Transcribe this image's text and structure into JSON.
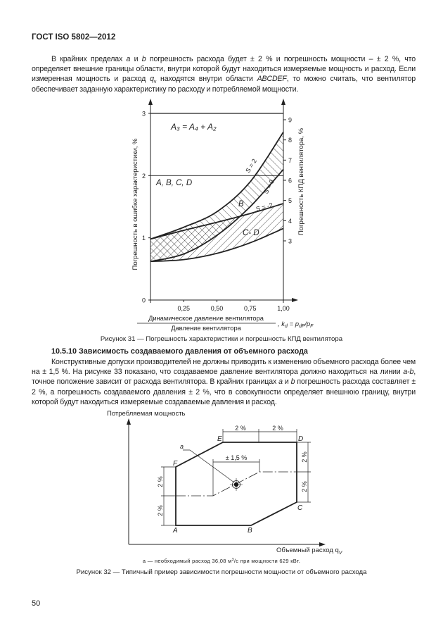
{
  "header": {
    "doc_id": "ГОСТ ISO 5802—2012"
  },
  "intro": {
    "p1_a": "В крайних пределах ",
    "p1_a_var": "a",
    "p1_b": " и ",
    "p1_b_var": "b",
    "p1_c": " погрешность расхода будет ± 2 % и погрешность мощности – ± 2 %, что определяет внешние границы области, внутри которой будут находиться измеряемые мощность и расход. Если измеренная мощность и расход ",
    "p1_q": "q",
    "p1_q_sub": "v",
    "p1_d": " находятся внутри области ",
    "p1_region": "ABCDEF",
    "p1_e": ", то можно считать, что вентилятор обеспечивает заданную характеристику по расходу и потребляемой мощности."
  },
  "figure31": {
    "caption": "Рисунок 31 — Погрешность характеристики и погрешность КПД вентилятора",
    "formula_top": "A₃ = A₄ + A₂",
    "label_abcd": "A, B, C, D",
    "label_b": "B",
    "label_cd": "C- D",
    "curve_labels": {
      "s_pos2": "S = 2",
      "s_0": "S = 0",
      "s_neg2": "S = -2"
    },
    "xlabel_num": "Динамическое давление вентилятора",
    "xlabel_den": "Давление вентилятора",
    "xlabel_tail": ", k",
    "xlabel_tail_sub": "d",
    "xlabel_eq": " = p",
    "xlabel_eq_sub": "dF",
    "xlabel_slash": "/p",
    "xlabel_slash_sub": "F"
  },
  "chart_data": {
    "type": "line",
    "xlabel": "Динамическое давление вентилятора / Давление вентилятора, k_d = p_dF/p_F",
    "ylabel": "Погрешность в ошибке характеристики, %",
    "y2label": "Погрешность КПД вентилятора, %",
    "xlim": [
      0,
      1.0
    ],
    "ylim": [
      0,
      3
    ],
    "y2lim": [
      3,
      9
    ],
    "x_ticks": [
      "0,25",
      "0,50",
      "0,75",
      "1,00"
    ],
    "y_ticks": [
      "0",
      "1",
      "2",
      "3"
    ],
    "y2_ticks": [
      "3",
      "4",
      "5",
      "6",
      "7",
      "8",
      "9"
    ],
    "x": [
      0,
      0.25,
      0.5,
      0.75,
      1.0
    ],
    "series": [
      {
        "name": "S = 2",
        "values": [
          0.98,
          1.17,
          1.42,
          1.9,
          2.7
        ]
      },
      {
        "name": "S = 0",
        "values": [
          0.62,
          0.74,
          1.04,
          1.5,
          2.1
        ]
      },
      {
        "name": "S = -2",
        "values": [
          0.98,
          1.12,
          1.25,
          1.39,
          1.55
        ]
      },
      {
        "values": [
          0.62,
          0.65,
          0.75,
          0.92,
          1.15
        ]
      }
    ],
    "reference_lines": [
      {
        "y": 3,
        "label": "A₃ = A₄ + A₂"
      },
      {
        "y": 2,
        "label": "A, B, C, D"
      }
    ],
    "grid": false
  },
  "section": {
    "heading": "10.5.10 Зависимость создаваемого давления от объемного расхода",
    "p_a": "Конструктивные допуски производителей не должны приводить к изменению объемного расхода более чем на ± 1,5 %. На рисунке 33 показано, что создаваемое давление вентилятора должно находиться на линии ",
    "p_ab": "a-b",
    "p_b": ", точное положение зависит от расхода вентилятора. В крайних границах ",
    "p_a_var": "a",
    "p_c": " и ",
    "p_b_var": "b",
    "p_d": " погрешность расхода составляет ± 2 %, а погрешность создаваемого давления ± 2 %, что в совокупности определяет внешнюю границу, внутри которой будут находиться измеряемые создаваемые давления и расход."
  },
  "figure32": {
    "ylabel": "Потребляемая мощность",
    "xlabel": "Объемный расход q",
    "xlabel_sub": "V",
    "points": {
      "a": "A",
      "b": "B",
      "c": "C",
      "d": "D",
      "e": "E",
      "f": "F"
    },
    "dim_top_left": "2 %",
    "dim_top_right": "2 %",
    "dim_center": "± 1,5 %",
    "dim_left_top": "2 %",
    "dim_left_bottom": "2 %",
    "dim_right_top": "2 %",
    "dim_right_bottom": "2 %",
    "marker_label": "a",
    "footnote_a": "a — необходимый расход 36,08 м",
    "footnote_sup": "3",
    "footnote_b": "/с при мощности 629 кВт.",
    "caption": "Рисунок 32 — Типичный пример зависимости погрешности мощности от объемного расхода"
  },
  "footer": {
    "page_number": "50"
  }
}
